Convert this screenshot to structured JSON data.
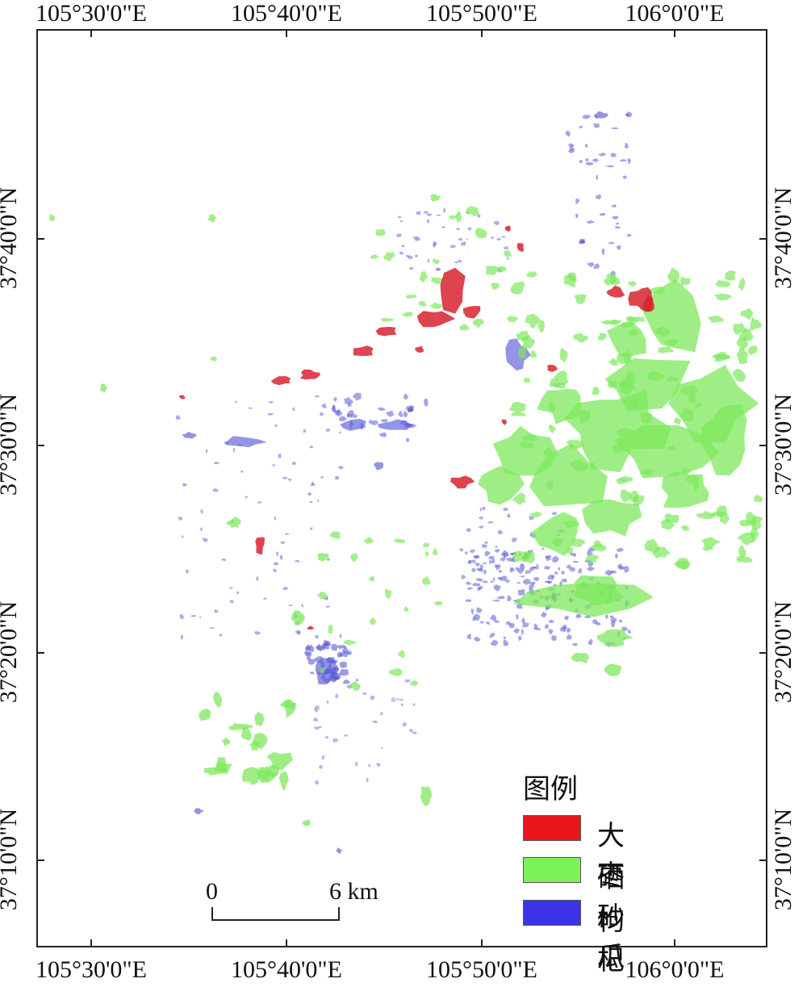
{
  "axes": {
    "top_labels": [
      "105°30'0\"E",
      "105°40'0\"E",
      "105°50'0\"E",
      "106°0'0\"E"
    ],
    "bottom_labels": [
      "105°30'0\"E",
      "105°40'0\"E",
      "105°50'0\"E",
      "106°0'0\"E"
    ],
    "left_labels": [
      "37°40'0\"N",
      "37°30'0\"N",
      "37°20'0\"N",
      "37°10'0\"N"
    ],
    "right_labels": [
      "37°40'0\"N",
      "37°30'0\"N",
      "37°20'0\"N",
      "37°10'0\"N"
    ]
  },
  "legend": {
    "title": "图例",
    "items": [
      {
        "label": "大枣",
        "color": "#e8151d"
      },
      {
        "label": "硒砂瓜",
        "color": "#7cf25a"
      },
      {
        "label": "枸杞",
        "color": "#3b34e6"
      }
    ]
  },
  "scale_bar": {
    "start": "0",
    "end": "6 km"
  },
  "colors": {
    "red": "#d8232e",
    "green": "#7ee85c",
    "blue": "#5a5ad6"
  }
}
